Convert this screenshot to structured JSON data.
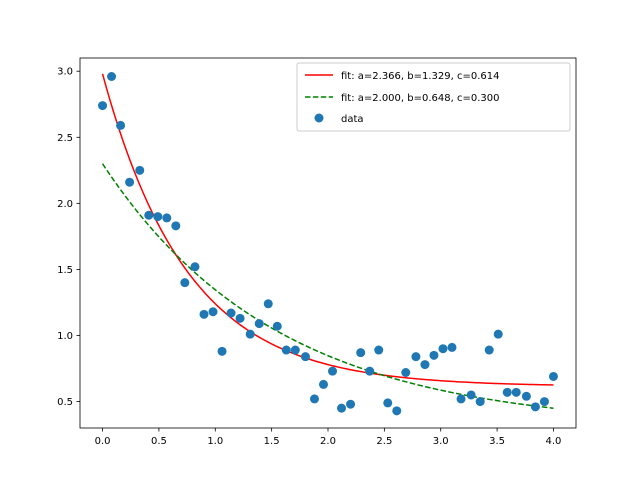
{
  "chart_data": {
    "type": "scatter",
    "title": "",
    "xlabel": "",
    "ylabel": "",
    "xlim": [
      -0.2,
      4.2
    ],
    "ylim": [
      0.3,
      3.1
    ],
    "xticks": [
      0.0,
      0.5,
      1.0,
      1.5,
      2.0,
      2.5,
      3.0,
      3.5,
      4.0
    ],
    "yticks": [
      0.5,
      1.0,
      1.5,
      2.0,
      2.5,
      3.0
    ],
    "xtick_labels": [
      "0.0",
      "0.5",
      "1.0",
      "1.5",
      "2.0",
      "2.5",
      "3.0",
      "3.5",
      "4.0"
    ],
    "ytick_labels": [
      "0.5",
      "1.0",
      "1.5",
      "2.0",
      "2.5",
      "3.0"
    ],
    "grid": false,
    "legend_position": "top-right",
    "series": [
      {
        "name": "fit: a=2.366, b=1.329, c=0.614",
        "kind": "line",
        "style": "solid",
        "color": "#ff0000",
        "model": {
          "a": 2.366,
          "b": 1.329,
          "c": 0.614
        }
      },
      {
        "name": "fit: a=2.000, b=0.648, c=0.300",
        "kind": "line",
        "style": "dashed",
        "color": "#008000",
        "model": {
          "a": 2.0,
          "b": 0.648,
          "c": 0.3
        }
      },
      {
        "name": "data",
        "kind": "scatter",
        "color": "#1f77b4",
        "x": [
          0.0,
          0.08,
          0.16,
          0.24,
          0.33,
          0.41,
          0.49,
          0.57,
          0.65,
          0.73,
          0.82,
          0.9,
          0.98,
          1.06,
          1.14,
          1.22,
          1.31,
          1.39,
          1.47,
          1.55,
          1.63,
          1.71,
          1.8,
          1.88,
          1.96,
          2.04,
          2.12,
          2.2,
          2.29,
          2.37,
          2.45,
          2.53,
          2.61,
          2.69,
          2.78,
          2.86,
          2.94,
          3.02,
          3.1,
          3.18,
          3.27,
          3.35,
          3.43,
          3.51,
          3.59,
          3.67,
          3.76,
          3.84,
          3.92,
          4.0
        ],
        "y": [
          2.74,
          2.96,
          2.59,
          2.16,
          2.25,
          1.91,
          1.9,
          1.89,
          1.83,
          1.4,
          1.52,
          1.16,
          1.18,
          0.88,
          1.17,
          1.13,
          1.01,
          1.09,
          1.24,
          1.07,
          0.89,
          0.89,
          0.84,
          0.52,
          0.63,
          0.73,
          0.45,
          0.48,
          0.87,
          0.73,
          0.89,
          0.49,
          0.43,
          0.72,
          0.84,
          0.78,
          0.85,
          0.9,
          0.91,
          0.52,
          0.55,
          0.5,
          0.89,
          1.01,
          0.57,
          0.57,
          0.54,
          0.46,
          0.5,
          0.69
        ]
      }
    ]
  }
}
